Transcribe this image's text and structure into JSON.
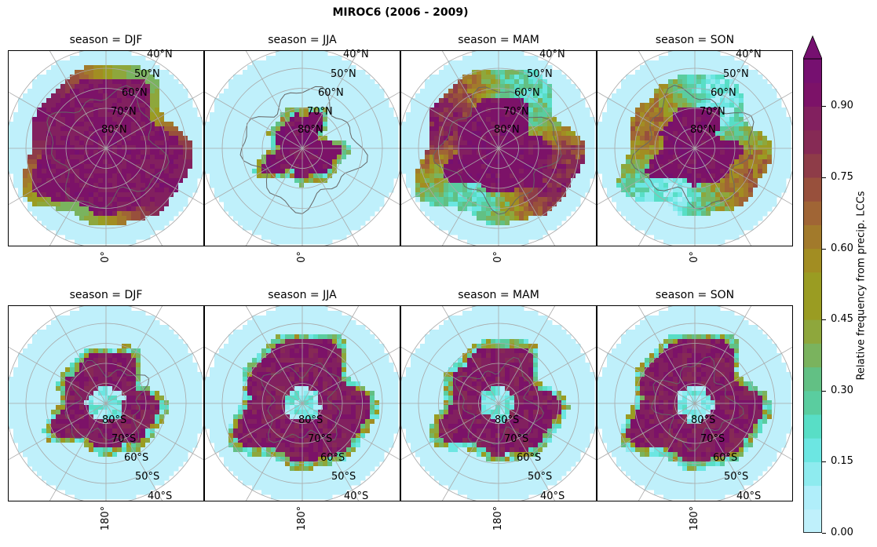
{
  "figure": {
    "title": "MIROC6 (2006 - 2009)"
  },
  "colors": {
    "colormap": [
      "#bff0fb",
      "#b0eefa",
      "#8eebef",
      "#6ce6e2",
      "#58dec6",
      "#5acd9f",
      "#62c084",
      "#7ab35e",
      "#8ea73c",
      "#9a9c22",
      "#a28d22",
      "#a27a2b",
      "#a06535",
      "#98503c",
      "#8e3c48",
      "#862a55",
      "#82205f",
      "#7c1268",
      "#761070"
    ],
    "land_outline": "#666666",
    "grid": "#a9a9a9"
  },
  "chart_data": {
    "type": "heatmap",
    "projection": "polar stereographic",
    "variable_label": "Relative frequency from precip. LCCs",
    "colorbar": {
      "range": [
        0.0,
        1.0
      ],
      "extend": "max",
      "levels": 20,
      "tick_labels": [
        "0.00",
        "0.15",
        "0.30",
        "0.45",
        "0.60",
        "0.75",
        "0.90"
      ]
    },
    "panels": [
      {
        "hemisphere": "north",
        "title": "season = DJF",
        "lat_labels": [
          "40°N",
          "50°N",
          "60°N",
          "70°N",
          "80°N"
        ],
        "lon_label": "0°",
        "approx_coverage": "high values over land and ice north of 50°N"
      },
      {
        "hemisphere": "north",
        "title": "season = JJA",
        "lat_labels": [
          "40°N",
          "50°N",
          "60°N",
          "70°N",
          "80°N"
        ],
        "lon_label": "0°",
        "approx_coverage": "high values only over central Arctic and Greenland"
      },
      {
        "hemisphere": "north",
        "title": "season = MAM",
        "lat_labels": [
          "40°N",
          "50°N",
          "60°N",
          "70°N",
          "80°N"
        ],
        "lon_label": "0°",
        "approx_coverage": "high values north of 55°N, mixed over Eurasia"
      },
      {
        "hemisphere": "north",
        "title": "season = SON",
        "lat_labels": [
          "40°N",
          "50°N",
          "60°N",
          "70°N",
          "80°N"
        ],
        "lon_label": "0°",
        "approx_coverage": "high values north of 65°N, moderate over continents"
      },
      {
        "hemisphere": "south",
        "title": "season = DJF",
        "lat_labels": [
          "40°S",
          "50°S",
          "60°S",
          "70°S",
          "80°S"
        ],
        "lon_label": "180°",
        "approx_coverage": "high values along Antarctic coast"
      },
      {
        "hemisphere": "south",
        "title": "season = JJA",
        "lat_labels": [
          "40°S",
          "50°S",
          "60°S",
          "70°S",
          "80°S"
        ],
        "lon_label": "180°",
        "approx_coverage": "high values in ring around Antarctica to 60°S"
      },
      {
        "hemisphere": "south",
        "title": "season = MAM",
        "lat_labels": [
          "40°S",
          "50°S",
          "60°S",
          "70°S",
          "80°S"
        ],
        "lon_label": "180°",
        "approx_coverage": "high values in ring around Antarctica"
      },
      {
        "hemisphere": "south",
        "title": "season = SON",
        "lat_labels": [
          "40°S",
          "50°S",
          "60°S",
          "70°S",
          "80°S"
        ],
        "lon_label": "180°",
        "approx_coverage": "high values in ring around Antarctica to 60°S"
      }
    ]
  }
}
